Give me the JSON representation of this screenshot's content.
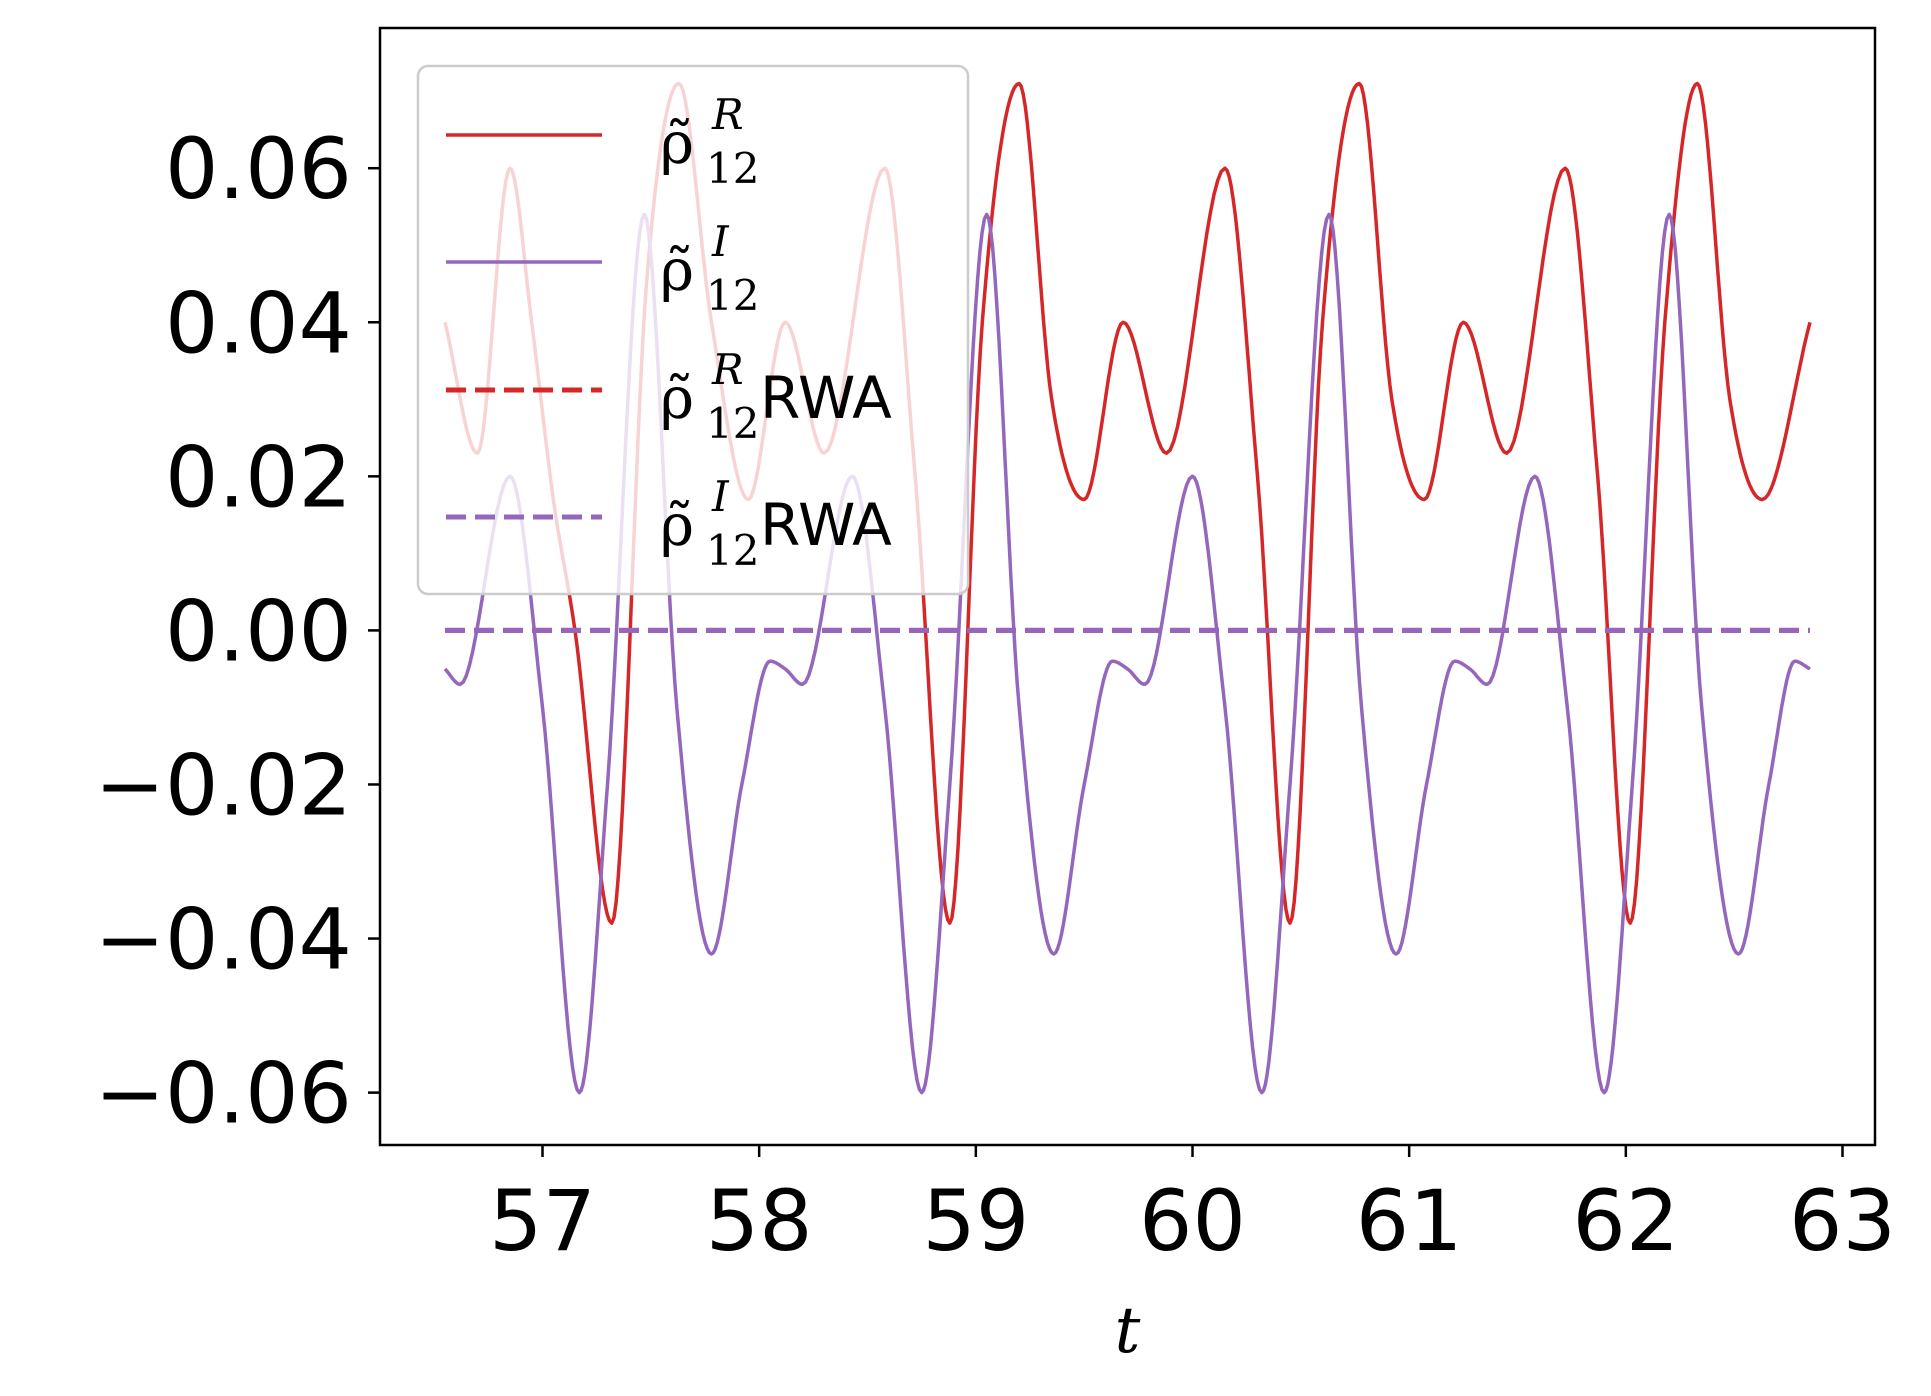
{
  "chart_data": {
    "type": "line",
    "title": "",
    "xlabel": "t",
    "ylabel": "",
    "xlim": [
      56.25,
      63.15
    ],
    "ylim": [
      -0.0668,
      0.0782
    ],
    "x_ticks": [
      57,
      58,
      59,
      60,
      61,
      62,
      63
    ],
    "x_tick_labels": [
      "57",
      "58",
      "59",
      "60",
      "61",
      "62",
      "63"
    ],
    "y_ticks": [
      0.06,
      0.04,
      0.02,
      0.0,
      -0.02,
      -0.04,
      -0.06
    ],
    "y_tick_labels": [
      "0.06",
      "0.04",
      "0.02",
      "0.00",
      "−0.02",
      "−0.04",
      "−0.06"
    ],
    "grid": false,
    "legend_position": "upper-left",
    "x_range": [
      56.55,
      62.85
    ],
    "period": 3.16,
    "series": [
      {
        "name": "ρ̃ᴿ₁₂",
        "name_main": "ρ̃",
        "name_sup": "R",
        "name_sub": "12",
        "name_suffix": "",
        "color": "#d62728",
        "dash": "solid",
        "points": [
          [
            56.55,
            0.04
          ],
          [
            56.7,
            0.023
          ],
          [
            56.85,
            0.06
          ],
          [
            56.95,
            0.04
          ],
          [
            57.05,
            0.017
          ],
          [
            57.15,
            0.0
          ],
          [
            57.32,
            -0.038
          ],
          [
            57.48,
            0.045
          ],
          [
            57.63,
            0.071
          ],
          [
            57.78,
            0.04
          ],
          [
            57.95,
            0.017
          ],
          [
            58.12,
            0.04
          ],
          [
            58.3,
            0.023
          ],
          [
            58.58,
            0.06
          ],
          [
            58.72,
            0.02
          ],
          [
            58.88,
            -0.038
          ],
          [
            59.03,
            0.04
          ],
          [
            59.2,
            0.071
          ],
          [
            59.35,
            0.03
          ],
          [
            59.5,
            0.017
          ],
          [
            59.68,
            0.04
          ],
          [
            59.88,
            0.023
          ],
          [
            60.15,
            0.06
          ],
          [
            60.3,
            0.02
          ],
          [
            60.45,
            -0.038
          ],
          [
            60.6,
            0.04
          ],
          [
            60.77,
            0.071
          ],
          [
            60.92,
            0.03
          ],
          [
            61.07,
            0.017
          ],
          [
            61.25,
            0.04
          ],
          [
            61.45,
            0.023
          ],
          [
            61.72,
            0.06
          ],
          [
            61.87,
            0.02
          ],
          [
            62.02,
            -0.038
          ],
          [
            62.18,
            0.04
          ],
          [
            62.33,
            0.071
          ],
          [
            62.48,
            0.03
          ],
          [
            62.63,
            0.017
          ],
          [
            62.85,
            0.04
          ]
        ]
      },
      {
        "name": "ρ̃ᴵ₁₂",
        "name_main": "ρ̃",
        "name_sup": "I",
        "name_sub": "12",
        "name_suffix": "",
        "color": "#9467bd",
        "dash": "solid",
        "points": [
          [
            56.55,
            -0.005
          ],
          [
            56.62,
            -0.007
          ],
          [
            56.85,
            0.02
          ],
          [
            57.0,
            -0.01
          ],
          [
            57.17,
            -0.06
          ],
          [
            57.3,
            -0.02
          ],
          [
            57.47,
            0.054
          ],
          [
            57.62,
            -0.01
          ],
          [
            57.78,
            -0.042
          ],
          [
            57.92,
            -0.02
          ],
          [
            58.05,
            -0.004
          ],
          [
            58.12,
            -0.005
          ],
          [
            58.2,
            -0.007
          ],
          [
            58.43,
            0.02
          ],
          [
            58.58,
            -0.01
          ],
          [
            58.75,
            -0.06
          ],
          [
            58.88,
            -0.02
          ],
          [
            59.05,
            0.054
          ],
          [
            59.2,
            -0.01
          ],
          [
            59.36,
            -0.042
          ],
          [
            59.5,
            -0.02
          ],
          [
            59.63,
            -0.004
          ],
          [
            59.7,
            -0.005
          ],
          [
            59.78,
            -0.007
          ],
          [
            60.0,
            0.02
          ],
          [
            60.15,
            -0.01
          ],
          [
            60.32,
            -0.06
          ],
          [
            60.45,
            -0.02
          ],
          [
            60.63,
            0.054
          ],
          [
            60.78,
            -0.01
          ],
          [
            60.94,
            -0.042
          ],
          [
            61.08,
            -0.02
          ],
          [
            61.21,
            -0.004
          ],
          [
            61.28,
            -0.005
          ],
          [
            61.36,
            -0.007
          ],
          [
            61.58,
            0.02
          ],
          [
            61.73,
            -0.01
          ],
          [
            61.9,
            -0.06
          ],
          [
            62.03,
            -0.02
          ],
          [
            62.2,
            0.054
          ],
          [
            62.35,
            -0.01
          ],
          [
            62.52,
            -0.042
          ],
          [
            62.66,
            -0.02
          ],
          [
            62.78,
            -0.004
          ],
          [
            62.85,
            -0.005
          ]
        ]
      },
      {
        "name": "ρ̃ᴿ₁₂RWA",
        "name_main": "ρ̃",
        "name_sup": "R",
        "name_sub": "12",
        "name_suffix": "RWA",
        "color": "#d62728",
        "dash": "dashed",
        "points": [
          [
            56.55,
            0.0
          ],
          [
            62.85,
            0.0
          ]
        ]
      },
      {
        "name": "ρ̃ᴵ₁₂RWA",
        "name_main": "ρ̃",
        "name_sup": "I",
        "name_sub": "12",
        "name_suffix": "RWA",
        "color": "#9467bd",
        "dash": "dashed",
        "points": [
          [
            56.55,
            0.0
          ],
          [
            62.85,
            0.0
          ]
        ]
      }
    ]
  }
}
